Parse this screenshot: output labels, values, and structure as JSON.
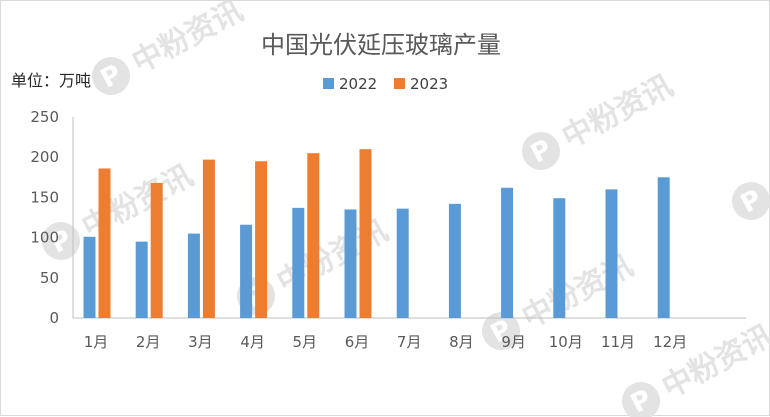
{
  "watermark": {
    "text": "中粉资讯",
    "badge_letter": "P"
  },
  "chart_data": {
    "type": "bar",
    "title": "中国光伏延压玻璃产量",
    "unit_label": "单位：万吨",
    "categories": [
      "1月",
      "2月",
      "3月",
      "4月",
      "5月",
      "6月",
      "7月",
      "8月",
      "9月",
      "10月",
      "11月",
      "12月"
    ],
    "series": [
      {
        "name": "2022",
        "color": "#5b9bd5",
        "values": [
          101,
          95,
          105,
          116,
          137,
          135,
          136,
          142,
          162,
          149,
          160,
          175
        ]
      },
      {
        "name": "2023",
        "color": "#ed7d31",
        "values": [
          186,
          168,
          197,
          195,
          205,
          210,
          null,
          null,
          null,
          null,
          null,
          null
        ]
      }
    ],
    "ylim": [
      0,
      250
    ],
    "yticks": [
      0,
      50,
      100,
      150,
      200,
      250
    ],
    "gridlines": false,
    "legend_position": "top-center"
  }
}
